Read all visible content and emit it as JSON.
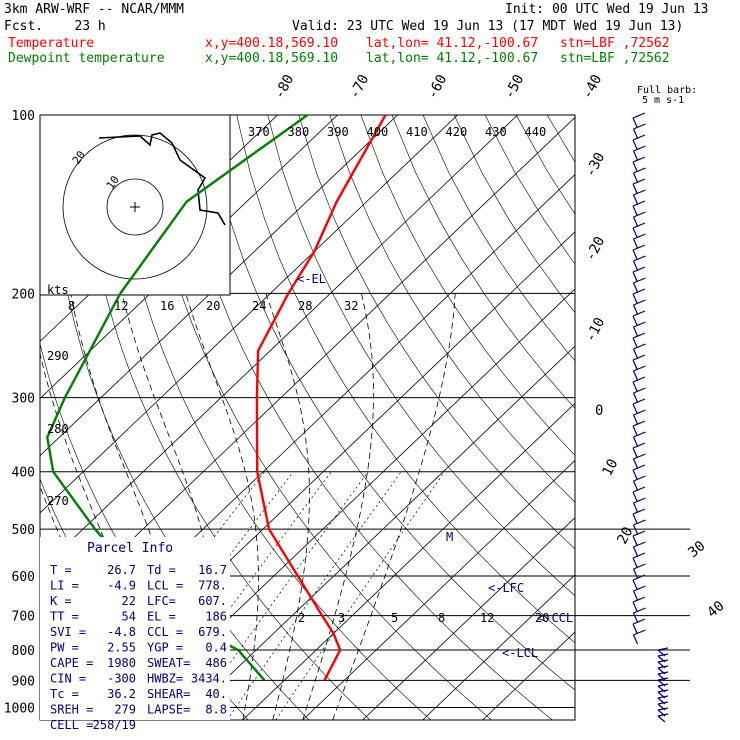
{
  "header": {
    "model": "3km ARW-WRF -- NCAR/MMM",
    "init": "Init: 00 UTC Wed 19 Jun 13",
    "fcst": "Fcst.    23 h",
    "valid": "Valid: 23 UTC Wed 19 Jun 13 (17 MDT Wed 19 Jun 13)",
    "temp_label": "Temperature",
    "dew_label": "Dewpoint temperature",
    "xy": "x,y=400.18,569.10",
    "latlon": "lat,lon= 41.12,-100.67",
    "stn": "stn=LBF ,72562"
  },
  "colors": {
    "temperature": "#ff0000",
    "dewpoint": "#008000",
    "wind": "#000080",
    "parcel": "#000080"
  },
  "chart_data": {
    "type": "line",
    "title": "",
    "pressure_levels": [
      "100",
      "200",
      "300",
      "400",
      "500",
      "600",
      "700",
      "800",
      "900",
      "1000"
    ],
    "skew_temp_labels": [
      "-80",
      "-70",
      "-60",
      "-50",
      "-40",
      "-30",
      "-20",
      "-10",
      "0",
      "10",
      "20",
      "30",
      "40"
    ],
    "theta_e_labels": [
      "370",
      "380",
      "390",
      "400",
      "410",
      "420",
      "430",
      "440"
    ],
    "mixing_ratio_top": [
      "8",
      "12",
      "16",
      "20",
      "24",
      "28",
      "32"
    ],
    "mixing_ratio_bottom": [
      "2",
      "3",
      "5",
      "8",
      "12",
      "20"
    ],
    "theta_left": [
      "290",
      "280",
      "270"
    ],
    "kts_label": "kts",
    "annotations": [
      "<-EL",
      "<-LFC",
      "<-CCL",
      "<-LCL",
      "M"
    ],
    "full_barb_label": "Full barb:",
    "full_barb_value": "5 m s-1",
    "series": [
      {
        "name": "Temperature",
        "p": [
          100,
          140,
          170,
          200,
          250,
          300,
          400,
          500,
          600,
          700,
          750,
          800,
          900
        ],
        "t": [
          -62,
          -55,
          -50,
          -47,
          -42,
          -34,
          -21,
          -9,
          4,
          15,
          20,
          24,
          26.7
        ]
      },
      {
        "name": "Dewpoint temperature",
        "p": [
          100,
          140,
          200,
          300,
          350,
          400,
          500,
          600,
          700,
          800,
          900
        ],
        "t": [
          -75,
          -80,
          -75,
          -66,
          -62,
          -55,
          -38,
          -23,
          -10,
          7,
          16.7
        ]
      }
    ],
    "parcel_info": {
      "title": "Parcel Info",
      "rows": [
        [
          "T  =",
          "26.7",
          "Td =",
          "16.7"
        ],
        [
          "LI =",
          "-4.9",
          "LCL =",
          "778."
        ],
        [
          "K  =",
          "22",
          "LFC=",
          "607."
        ],
        [
          "TT =",
          "54",
          "EL  =",
          "186"
        ],
        [
          "SVI =",
          "-4.8",
          "CCL =",
          "679."
        ],
        [
          "PW =",
          "2.55",
          "YGP =",
          "0.4"
        ],
        [
          "CAPE =",
          "1980",
          "SWEAT=",
          "486"
        ],
        [
          "CIN =",
          "-300",
          "HWBZ=",
          "3434."
        ],
        [
          "Tc =",
          "36.2",
          "SHEAR=",
          "40."
        ],
        [
          "SREH =",
          "279",
          "LAPSE=",
          "8.8"
        ],
        [
          "CELL =",
          "258/19",
          "",
          ""
        ]
      ]
    },
    "hodograph_ring_labels": [
      "20",
      "10"
    ]
  }
}
